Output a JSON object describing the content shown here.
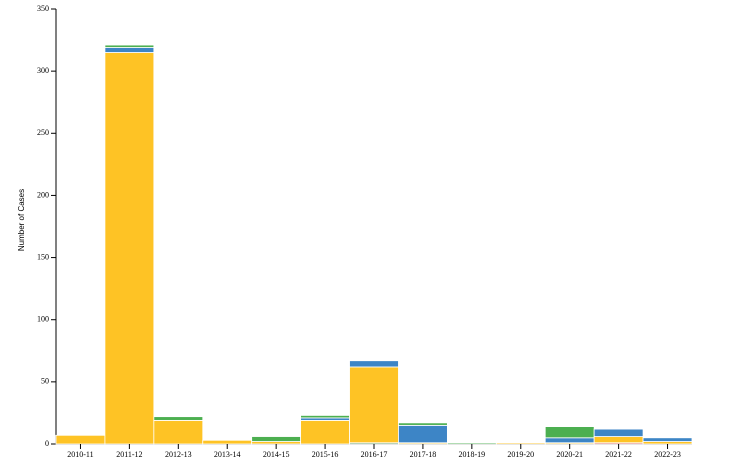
{
  "chart_data": {
    "type": "stacked-bar",
    "y_label": "Number of Cases",
    "categories": [
      "2010-11",
      "2011-12",
      "2012-13",
      "2013-14",
      "2014-15",
      "2015-16",
      "2016-17",
      "2017-18",
      "2018-19",
      "2019-20",
      "2020-21",
      "2021-22",
      "2022-23"
    ],
    "series": [
      {
        "color": "#2e7d32",
        "values": [
          0,
          0,
          0,
          0,
          0,
          0,
          1,
          0,
          0,
          0,
          0,
          0,
          0
        ]
      },
      {
        "color": "#d93a2b",
        "values": [
          0,
          0,
          0,
          0,
          0,
          0,
          0,
          0,
          0,
          0,
          0,
          1,
          0
        ]
      },
      {
        "color": "#fec325",
        "values": [
          7,
          315,
          19,
          3,
          2,
          19,
          61,
          1,
          0,
          1,
          1,
          5,
          2
        ]
      },
      {
        "color": "#3d85c6",
        "values": [
          0,
          4,
          0,
          0,
          0,
          2,
          5,
          14,
          0,
          0,
          4,
          6,
          3
        ]
      },
      {
        "color": "#4caf50",
        "values": [
          0,
          2,
          3,
          0,
          4,
          2,
          0,
          2,
          1,
          0,
          9,
          0,
          0
        ]
      }
    ],
    "ylim": [
      0,
      350
    ],
    "yticks": [
      0,
      50,
      100,
      150,
      200,
      250,
      300,
      350
    ]
  }
}
